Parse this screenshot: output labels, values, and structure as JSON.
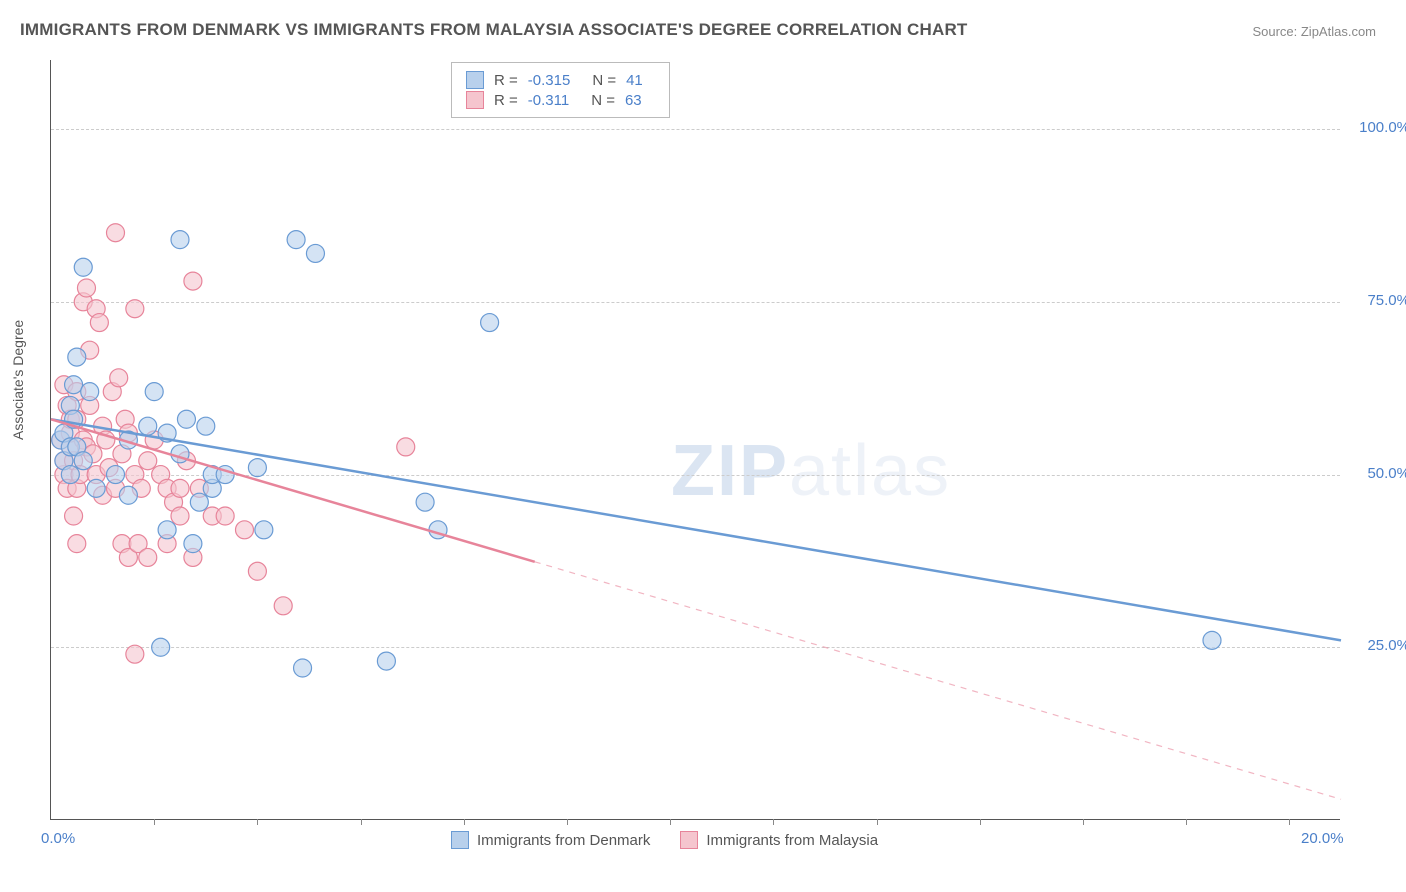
{
  "title": "IMMIGRANTS FROM DENMARK VS IMMIGRANTS FROM MALAYSIA ASSOCIATE'S DEGREE CORRELATION CHART",
  "source": "Source: ZipAtlas.com",
  "watermark_bold": "ZIP",
  "watermark_rest": "atlas",
  "chart": {
    "type": "scatter",
    "ylabel": "Associate's Degree",
    "x_range": [
      0,
      20
    ],
    "y_range": [
      0,
      110
    ],
    "x_ticks": [
      0,
      20
    ],
    "x_tick_labels": [
      "0.0%",
      "20.0%"
    ],
    "x_minor_ticks": [
      1.6,
      3.2,
      4.8,
      6.4,
      8.0,
      9.6,
      11.2,
      12.8,
      14.4,
      16.0,
      17.6,
      19.2
    ],
    "y_ticks": [
      25,
      50,
      75,
      100
    ],
    "y_tick_labels": [
      "25.0%",
      "50.0%",
      "75.0%",
      "100.0%"
    ],
    "background_color": "#ffffff",
    "grid_color": "#cccccc",
    "series": [
      {
        "name": "Immigrants from Denmark",
        "color_fill": "#b8d0ec",
        "color_stroke": "#6a9bd4",
        "r_value": "-0.315",
        "n_value": "41",
        "marker_radius": 9,
        "marker_opacity": 0.6,
        "trend": {
          "x1": 0,
          "y1": 58,
          "x2": 20,
          "y2": 26,
          "solid_until_x": 20,
          "stroke_width": 2.5
        },
        "points": [
          [
            0.15,
            55
          ],
          [
            0.2,
            52
          ],
          [
            0.2,
            56
          ],
          [
            0.3,
            60
          ],
          [
            0.3,
            54
          ],
          [
            0.3,
            50
          ],
          [
            0.35,
            63
          ],
          [
            0.35,
            58
          ],
          [
            0.4,
            67
          ],
          [
            0.4,
            54
          ],
          [
            0.5,
            80
          ],
          [
            0.5,
            52
          ],
          [
            0.6,
            62
          ],
          [
            0.7,
            48
          ],
          [
            1.0,
            50
          ],
          [
            1.2,
            55
          ],
          [
            1.2,
            47
          ],
          [
            1.5,
            57
          ],
          [
            1.6,
            62
          ],
          [
            1.7,
            25
          ],
          [
            1.8,
            42
          ],
          [
            1.8,
            56
          ],
          [
            2.0,
            53
          ],
          [
            2.0,
            84
          ],
          [
            2.1,
            58
          ],
          [
            2.2,
            40
          ],
          [
            2.3,
            46
          ],
          [
            2.4,
            57
          ],
          [
            2.5,
            48
          ],
          [
            2.5,
            50
          ],
          [
            2.7,
            50
          ],
          [
            3.2,
            51
          ],
          [
            3.3,
            42
          ],
          [
            3.8,
            84
          ],
          [
            3.9,
            22
          ],
          [
            4.1,
            82
          ],
          [
            5.2,
            23
          ],
          [
            5.8,
            46
          ],
          [
            6.0,
            42
          ],
          [
            6.8,
            72
          ],
          [
            18.0,
            26
          ]
        ]
      },
      {
        "name": "Immigrants from Malaysia",
        "color_fill": "#f5c5ce",
        "color_stroke": "#e7849a",
        "r_value": "-0.311",
        "n_value": "63",
        "marker_radius": 9,
        "marker_opacity": 0.6,
        "trend": {
          "x1": 0,
          "y1": 58,
          "x2": 20,
          "y2": 3,
          "solid_until_x": 7.5,
          "stroke_width": 2.5
        },
        "points": [
          [
            0.15,
            55
          ],
          [
            0.2,
            50
          ],
          [
            0.2,
            52
          ],
          [
            0.2,
            63
          ],
          [
            0.25,
            60
          ],
          [
            0.25,
            48
          ],
          [
            0.3,
            54
          ],
          [
            0.3,
            56
          ],
          [
            0.3,
            58
          ],
          [
            0.35,
            52
          ],
          [
            0.35,
            44
          ],
          [
            0.4,
            48
          ],
          [
            0.4,
            58
          ],
          [
            0.4,
            62
          ],
          [
            0.45,
            50
          ],
          [
            0.5,
            55
          ],
          [
            0.5,
            75
          ],
          [
            0.55,
            77
          ],
          [
            0.55,
            54
          ],
          [
            0.6,
            60
          ],
          [
            0.6,
            68
          ],
          [
            0.65,
            53
          ],
          [
            0.7,
            74
          ],
          [
            0.7,
            50
          ],
          [
            0.75,
            72
          ],
          [
            0.8,
            47
          ],
          [
            0.8,
            57
          ],
          [
            0.85,
            55
          ],
          [
            0.9,
            51
          ],
          [
            0.95,
            62
          ],
          [
            1.0,
            48
          ],
          [
            1.0,
            85
          ],
          [
            1.05,
            64
          ],
          [
            1.1,
            40
          ],
          [
            1.1,
            53
          ],
          [
            1.15,
            58
          ],
          [
            1.2,
            38
          ],
          [
            1.2,
            56
          ],
          [
            1.3,
            50
          ],
          [
            1.3,
            74
          ],
          [
            1.35,
            40
          ],
          [
            1.4,
            48
          ],
          [
            1.5,
            38
          ],
          [
            1.5,
            52
          ],
          [
            1.6,
            55
          ],
          [
            1.7,
            50
          ],
          [
            1.8,
            48
          ],
          [
            1.8,
            40
          ],
          [
            1.9,
            46
          ],
          [
            2.0,
            44
          ],
          [
            2.0,
            48
          ],
          [
            2.1,
            52
          ],
          [
            2.2,
            78
          ],
          [
            2.2,
            38
          ],
          [
            2.3,
            48
          ],
          [
            2.5,
            44
          ],
          [
            2.7,
            44
          ],
          [
            3.0,
            42
          ],
          [
            3.2,
            36
          ],
          [
            3.6,
            31
          ],
          [
            5.5,
            54
          ],
          [
            1.3,
            24
          ],
          [
            0.4,
            40
          ]
        ]
      }
    ],
    "r_legend_labels": {
      "r": "R =",
      "n": "N ="
    },
    "bottom_legend": [
      {
        "label": "Immigrants from Denmark",
        "series": 0
      },
      {
        "label": "Immigrants from Malaysia",
        "series": 1
      }
    ]
  }
}
